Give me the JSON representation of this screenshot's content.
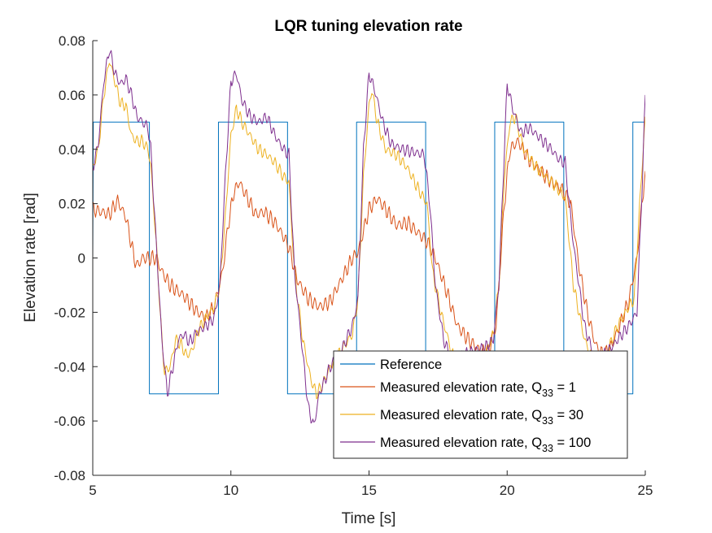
{
  "colors": {
    "reference": "#0072BD",
    "q1": "#D95319",
    "q30": "#EDB120",
    "q100": "#7E2F8E",
    "axis": "#262626"
  },
  "chart_data": {
    "type": "line",
    "title": "LQR tuning elevation rate",
    "xlabel": "Time [s]",
    "ylabel": "Elevation rate [rad]",
    "xlim": [
      5,
      25
    ],
    "ylim": [
      -0.08,
      0.08
    ],
    "xticks": [
      5,
      10,
      15,
      20,
      25
    ],
    "xtick_labels": [
      "5",
      "10",
      "15",
      "20",
      "25"
    ],
    "yticks": [
      -0.08,
      -0.06,
      -0.04,
      -0.02,
      0,
      0.02,
      0.04,
      0.06,
      0.08
    ],
    "ytick_labels": [
      "-0.08",
      "-0.06",
      "-0.04",
      "-0.02",
      "0",
      "0.02",
      "0.04",
      "0.06",
      "0.08"
    ],
    "grid": false,
    "legend_position": "bottom-right",
    "series": [
      {
        "name": "Reference",
        "color": "#0072BD",
        "step": true,
        "points": [
          [
            5.0,
            0.0
          ],
          [
            5.02,
            0.05
          ],
          [
            7.05,
            0.05
          ],
          [
            7.05,
            -0.05
          ],
          [
            9.55,
            -0.05
          ],
          [
            9.55,
            0.05
          ],
          [
            12.05,
            0.05
          ],
          [
            12.05,
            -0.05
          ],
          [
            14.55,
            -0.05
          ],
          [
            14.55,
            0.05
          ],
          [
            17.05,
            0.05
          ],
          [
            17.05,
            -0.05
          ],
          [
            19.55,
            -0.05
          ],
          [
            19.55,
            0.05
          ],
          [
            22.05,
            0.05
          ],
          [
            22.05,
            -0.05
          ],
          [
            24.55,
            -0.05
          ],
          [
            24.55,
            0.05
          ],
          [
            25.0,
            0.05
          ]
        ]
      },
      {
        "name_parts": [
          "Measured elevation rate, Q",
          "33",
          " = 1"
        ],
        "color": "#D95319",
        "osc": 0.0022,
        "points": [
          [
            5.0,
            0.018
          ],
          [
            5.3,
            0.017
          ],
          [
            5.6,
            0.016
          ],
          [
            5.9,
            0.021
          ],
          [
            6.2,
            0.015
          ],
          [
            6.5,
            0.0
          ],
          [
            6.6,
            -0.003
          ],
          [
            6.8,
            0.0
          ],
          [
            7.0,
            0.0
          ],
          [
            7.3,
            0.0
          ],
          [
            7.5,
            -0.005
          ],
          [
            7.8,
            -0.01
          ],
          [
            8.3,
            -0.014
          ],
          [
            8.8,
            -0.02
          ],
          [
            9.1,
            -0.022
          ],
          [
            9.4,
            -0.018
          ],
          [
            9.7,
            -0.005
          ],
          [
            9.9,
            0.012
          ],
          [
            10.1,
            0.024
          ],
          [
            10.3,
            0.028
          ],
          [
            10.6,
            0.022
          ],
          [
            10.9,
            0.016
          ],
          [
            11.2,
            0.017
          ],
          [
            11.6,
            0.013
          ],
          [
            11.9,
            0.008
          ],
          [
            12.1,
            0.004
          ],
          [
            12.4,
            -0.008
          ],
          [
            12.8,
            -0.015
          ],
          [
            13.2,
            -0.018
          ],
          [
            13.6,
            -0.016
          ],
          [
            13.9,
            -0.01
          ],
          [
            14.2,
            -0.004
          ],
          [
            14.4,
            0.0
          ],
          [
            14.6,
            0.002
          ],
          [
            14.8,
            0.01
          ],
          [
            15.0,
            0.018
          ],
          [
            15.3,
            0.022
          ],
          [
            15.6,
            0.018
          ],
          [
            16.0,
            0.012
          ],
          [
            16.4,
            0.013
          ],
          [
            16.8,
            0.009
          ],
          [
            17.1,
            0.006
          ],
          [
            17.4,
            0.0
          ],
          [
            17.8,
            -0.012
          ],
          [
            18.2,
            -0.025
          ],
          [
            18.6,
            -0.03
          ],
          [
            19.0,
            -0.034
          ],
          [
            19.3,
            -0.035
          ],
          [
            19.6,
            -0.025
          ],
          [
            19.9,
            0.02
          ],
          [
            20.1,
            0.04
          ],
          [
            20.4,
            0.043
          ],
          [
            20.8,
            0.036
          ],
          [
            21.2,
            0.032
          ],
          [
            21.6,
            0.028
          ],
          [
            22.0,
            0.025
          ],
          [
            22.3,
            0.02
          ],
          [
            22.6,
            -0.003
          ],
          [
            22.9,
            -0.02
          ],
          [
            23.2,
            -0.032
          ],
          [
            23.5,
            -0.036
          ],
          [
            23.8,
            -0.032
          ],
          [
            24.1,
            -0.024
          ],
          [
            24.4,
            -0.016
          ],
          [
            24.7,
            0.0
          ],
          [
            24.9,
            0.022
          ],
          [
            25.0,
            0.032
          ]
        ]
      },
      {
        "name_parts": [
          "Measured elevation rate, Q",
          "33",
          " = 30"
        ],
        "color": "#EDB120",
        "osc": 0.0018,
        "points": [
          [
            5.0,
            0.033
          ],
          [
            5.2,
            0.04
          ],
          [
            5.4,
            0.06
          ],
          [
            5.6,
            0.073
          ],
          [
            5.8,
            0.065
          ],
          [
            6.0,
            0.057
          ],
          [
            6.2,
            0.056
          ],
          [
            6.4,
            0.045
          ],
          [
            6.6,
            0.043
          ],
          [
            6.8,
            0.043
          ],
          [
            7.0,
            0.04
          ],
          [
            7.1,
            0.034
          ],
          [
            7.3,
            0.005
          ],
          [
            7.5,
            -0.03
          ],
          [
            7.6,
            -0.042
          ],
          [
            7.8,
            -0.04
          ],
          [
            8.0,
            -0.03
          ],
          [
            8.2,
            -0.032
          ],
          [
            8.4,
            -0.036
          ],
          [
            8.6,
            -0.034
          ],
          [
            8.8,
            -0.027
          ],
          [
            9.1,
            -0.022
          ],
          [
            9.4,
            -0.018
          ],
          [
            9.6,
            -0.01
          ],
          [
            9.8,
            0.015
          ],
          [
            10.0,
            0.045
          ],
          [
            10.2,
            0.055
          ],
          [
            10.4,
            0.05
          ],
          [
            10.7,
            0.045
          ],
          [
            11.0,
            0.04
          ],
          [
            11.3,
            0.038
          ],
          [
            11.6,
            0.035
          ],
          [
            11.9,
            0.03
          ],
          [
            12.1,
            0.028
          ],
          [
            12.3,
            -0.005
          ],
          [
            12.6,
            -0.03
          ],
          [
            12.9,
            -0.045
          ],
          [
            13.1,
            -0.05
          ],
          [
            13.3,
            -0.047
          ],
          [
            13.6,
            -0.04
          ],
          [
            14.0,
            -0.034
          ],
          [
            14.4,
            -0.028
          ],
          [
            14.6,
            -0.015
          ],
          [
            14.8,
            0.03
          ],
          [
            15.0,
            0.056
          ],
          [
            15.1,
            0.062
          ],
          [
            15.3,
            0.05
          ],
          [
            15.6,
            0.04
          ],
          [
            16.0,
            0.038
          ],
          [
            16.4,
            0.033
          ],
          [
            16.8,
            0.025
          ],
          [
            17.1,
            0.02
          ],
          [
            17.3,
            -0.005
          ],
          [
            17.6,
            -0.02
          ],
          [
            18.0,
            -0.035
          ],
          [
            18.4,
            -0.04
          ],
          [
            18.8,
            -0.038
          ],
          [
            19.2,
            -0.035
          ],
          [
            19.5,
            -0.028
          ],
          [
            19.7,
            -0.01
          ],
          [
            19.9,
            0.03
          ],
          [
            20.1,
            0.05
          ],
          [
            20.3,
            0.052
          ],
          [
            20.6,
            0.04
          ],
          [
            21.0,
            0.034
          ],
          [
            21.4,
            0.03
          ],
          [
            21.8,
            0.026
          ],
          [
            22.1,
            0.022
          ],
          [
            22.4,
            -0.01
          ],
          [
            22.8,
            -0.03
          ],
          [
            23.2,
            -0.04
          ],
          [
            23.6,
            -0.035
          ],
          [
            24.0,
            -0.025
          ],
          [
            24.4,
            -0.018
          ],
          [
            24.6,
            -0.015
          ],
          [
            24.8,
            0.02
          ],
          [
            25.0,
            0.052
          ]
        ]
      },
      {
        "name_parts": [
          "Measured elevation rate, Q",
          "33",
          " = 100"
        ],
        "color": "#7E2F8E",
        "osc": 0.0018,
        "points": [
          [
            5.0,
            0.033
          ],
          [
            5.2,
            0.042
          ],
          [
            5.4,
            0.065
          ],
          [
            5.6,
            0.077
          ],
          [
            5.8,
            0.068
          ],
          [
            6.0,
            0.064
          ],
          [
            6.2,
            0.066
          ],
          [
            6.4,
            0.06
          ],
          [
            6.6,
            0.052
          ],
          [
            6.8,
            0.05
          ],
          [
            7.0,
            0.048
          ],
          [
            7.1,
            0.04
          ],
          [
            7.3,
            0.005
          ],
          [
            7.5,
            -0.03
          ],
          [
            7.7,
            -0.05
          ],
          [
            7.9,
            -0.04
          ],
          [
            8.1,
            -0.03
          ],
          [
            8.3,
            -0.028
          ],
          [
            8.5,
            -0.031
          ],
          [
            8.8,
            -0.027
          ],
          [
            9.1,
            -0.025
          ],
          [
            9.4,
            -0.022
          ],
          [
            9.6,
            -0.01
          ],
          [
            9.8,
            0.03
          ],
          [
            10.0,
            0.065
          ],
          [
            10.2,
            0.068
          ],
          [
            10.4,
            0.058
          ],
          [
            10.7,
            0.052
          ],
          [
            11.0,
            0.05
          ],
          [
            11.3,
            0.052
          ],
          [
            11.6,
            0.045
          ],
          [
            11.9,
            0.04
          ],
          [
            12.1,
            0.038
          ],
          [
            12.3,
            -0.005
          ],
          [
            12.6,
            -0.035
          ],
          [
            12.8,
            -0.055
          ],
          [
            13.0,
            -0.062
          ],
          [
            13.2,
            -0.05
          ],
          [
            13.6,
            -0.04
          ],
          [
            14.0,
            -0.034
          ],
          [
            14.4,
            -0.025
          ],
          [
            14.6,
            -0.015
          ],
          [
            14.8,
            0.04
          ],
          [
            15.0,
            0.068
          ],
          [
            15.2,
            0.062
          ],
          [
            15.5,
            0.05
          ],
          [
            15.8,
            0.042
          ],
          [
            16.2,
            0.04
          ],
          [
            16.6,
            0.039
          ],
          [
            17.0,
            0.038
          ],
          [
            17.2,
            0.02
          ],
          [
            17.4,
            -0.01
          ],
          [
            17.7,
            -0.03
          ],
          [
            18.0,
            -0.038
          ],
          [
            18.4,
            -0.036
          ],
          [
            18.8,
            -0.034
          ],
          [
            19.2,
            -0.033
          ],
          [
            19.5,
            -0.03
          ],
          [
            19.7,
            -0.01
          ],
          [
            19.9,
            0.04
          ],
          [
            20.0,
            0.064
          ],
          [
            20.2,
            0.055
          ],
          [
            20.5,
            0.046
          ],
          [
            20.8,
            0.048
          ],
          [
            21.2,
            0.044
          ],
          [
            21.6,
            0.04
          ],
          [
            21.9,
            0.036
          ],
          [
            22.1,
            0.035
          ],
          [
            22.4,
            0.005
          ],
          [
            22.8,
            -0.025
          ],
          [
            23.2,
            -0.038
          ],
          [
            23.6,
            -0.035
          ],
          [
            24.0,
            -0.03
          ],
          [
            24.4,
            -0.025
          ],
          [
            24.7,
            -0.02
          ],
          [
            24.9,
            0.03
          ],
          [
            25.0,
            0.06
          ]
        ]
      }
    ]
  }
}
